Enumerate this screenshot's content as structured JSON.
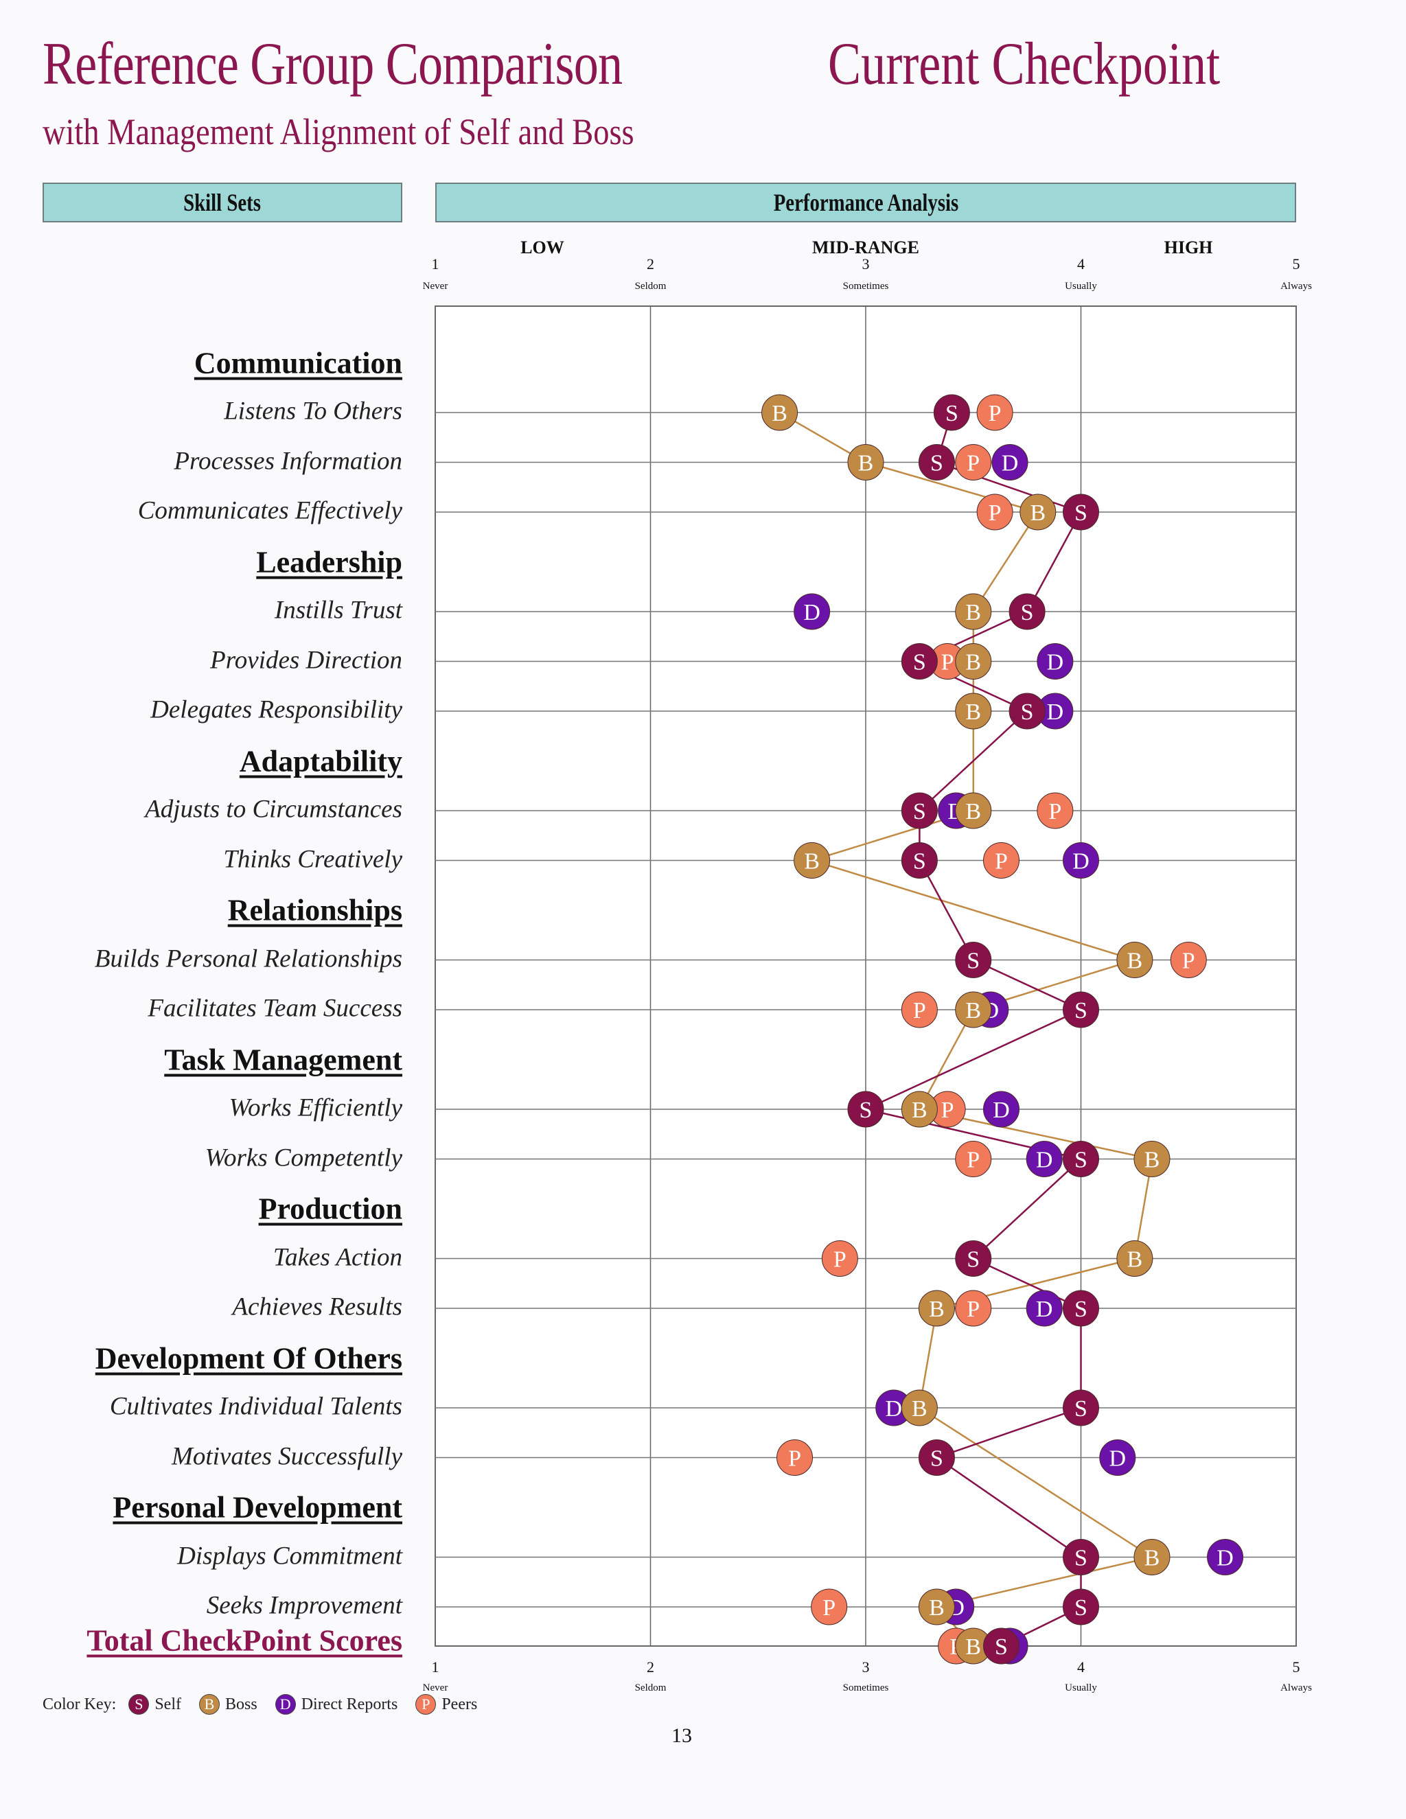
{
  "page": {
    "title": "Reference Group Comparison",
    "title_right": "Current Checkpoint",
    "subtitle": "with Management Alignment of Self and Boss",
    "skill_header": "Skill Sets",
    "perf_header": "Performance Analysis",
    "range_labels": [
      "LOW",
      "MID-RANGE",
      "HIGH"
    ],
    "page_number": "13"
  },
  "legend": {
    "title": "Color Key:",
    "items": [
      {
        "letter": "S",
        "label": "Self",
        "color": "#87124a"
      },
      {
        "letter": "B",
        "label": "Boss",
        "color": "#c08a45"
      },
      {
        "letter": "D",
        "label": "Direct Reports",
        "color": "#6b12a8"
      },
      {
        "letter": "P",
        "label": "Peers",
        "color": "#f07a5a"
      }
    ]
  },
  "chart_data": {
    "type": "scatter",
    "orientation": "horizontal dot plot with connected Self and Boss lines",
    "xlim": [
      1,
      5
    ],
    "x_ticks": [
      {
        "value": 1,
        "label": "1",
        "sub": "Never"
      },
      {
        "value": 2,
        "label": "2",
        "sub": "Seldom"
      },
      {
        "value": 3,
        "label": "3",
        "sub": "Sometimes"
      },
      {
        "value": 4,
        "label": "4",
        "sub": "Usually"
      },
      {
        "value": 5,
        "label": "5",
        "sub": "Always"
      }
    ],
    "series_colors": {
      "S": "#87124a",
      "B": "#c08a45",
      "D": "#6b12a8",
      "P": "#f07a5a"
    },
    "groups": [
      {
        "name": "Communication",
        "items": [
          {
            "label": "Listens To Others",
            "S": 3.4,
            "B": 2.6,
            "D": null,
            "P": 3.6
          },
          {
            "label": "Processes Information",
            "S": 3.33,
            "B": 3.0,
            "D": 3.67,
            "P": 3.5
          },
          {
            "label": "Communicates Effectively",
            "S": 4.0,
            "B": 3.8,
            "D": null,
            "P": 3.6
          }
        ]
      },
      {
        "name": "Leadership",
        "items": [
          {
            "label": "Instills Trust",
            "S": 3.75,
            "B": 3.5,
            "D": 2.75,
            "P": null
          },
          {
            "label": "Provides Direction",
            "S": 3.25,
            "B": 3.5,
            "D": 3.88,
            "P": 3.38
          },
          {
            "label": "Delegates Responsibility",
            "S": 3.75,
            "B": 3.5,
            "D": 3.88,
            "P": null
          }
        ]
      },
      {
        "name": "Adaptability",
        "items": [
          {
            "label": "Adjusts to Circumstances",
            "S": 3.25,
            "B": 3.5,
            "D": 3.42,
            "P": 3.88
          },
          {
            "label": "Thinks Creatively",
            "S": 3.25,
            "B": 2.75,
            "D": 4.0,
            "P": 3.63
          }
        ]
      },
      {
        "name": "Relationships",
        "items": [
          {
            "label": "Builds Personal Relationships",
            "S": 3.5,
            "B": 4.25,
            "D": null,
            "P": 4.5
          },
          {
            "label": "Facilitates Team Success",
            "S": 4.0,
            "B": 3.5,
            "D": 3.58,
            "P": 3.25
          }
        ]
      },
      {
        "name": "Task Management",
        "items": [
          {
            "label": "Works Efficiently",
            "S": 3.0,
            "B": 3.25,
            "D": 3.63,
            "P": 3.38
          },
          {
            "label": "Works Competently",
            "S": 4.0,
            "B": 4.33,
            "D": 3.83,
            "P": 3.5
          }
        ]
      },
      {
        "name": "Production",
        "items": [
          {
            "label": "Takes Action",
            "S": 3.5,
            "B": 4.25,
            "D": null,
            "P": 2.88
          },
          {
            "label": "Achieves Results",
            "S": 4.0,
            "B": 3.33,
            "D": 3.83,
            "P": 3.5
          }
        ]
      },
      {
        "name": "Development Of Others",
        "items": [
          {
            "label": "Cultivates Individual Talents",
            "S": 4.0,
            "B": 3.25,
            "D": 3.13,
            "P": null
          },
          {
            "label": "Motivates Successfully",
            "S": 3.33,
            "B": null,
            "D": 4.17,
            "P": 2.67
          }
        ]
      },
      {
        "name": "Personal Development",
        "items": [
          {
            "label": "Displays Commitment",
            "S": 4.0,
            "B": 4.33,
            "D": 4.67,
            "P": null
          },
          {
            "label": "Seeks Improvement",
            "S": 4.0,
            "B": 3.33,
            "D": 3.42,
            "P": 2.83
          }
        ]
      }
    ],
    "total": {
      "label": "Total CheckPoint Scores",
      "S": 3.63,
      "B": 3.5,
      "D": 3.67,
      "P": 3.42
    }
  }
}
